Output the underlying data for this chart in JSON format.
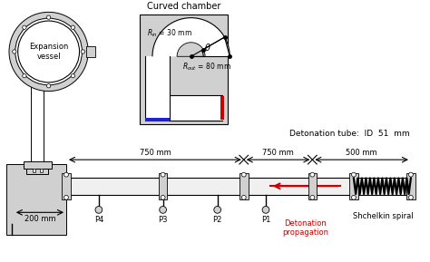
{
  "bg_color": "#ffffff",
  "light_gray": "#d0d0d0",
  "hatch_gray": "#b0b0b0",
  "black": "#000000",
  "red": "#cc0000",
  "blue": "#2222cc",
  "title": "Curved chamber",
  "tube_label": "Detonation tube:  ID  51  mm",
  "spiral_label": "Shchelkin spiral",
  "detonation_label": "Detonation\npropagation",
  "dim_750a": "750 mm",
  "dim_750b": "750 mm",
  "dim_500": "500 mm",
  "dim_200": "200 mm",
  "theta_label": "θ",
  "p_labels": [
    "P4",
    "P3",
    "P2",
    "P1"
  ],
  "vessel_label": "Expansion\nvessel",
  "figsize": [
    4.74,
    2.89
  ],
  "dpi": 100
}
